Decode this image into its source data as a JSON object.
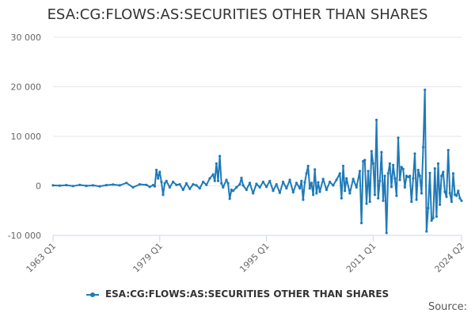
{
  "page": {
    "credits": "Source:"
  },
  "colors": {
    "series": "#1f7ab8",
    "grid": "#e6e6e6",
    "axis_text": "#666666"
  },
  "chart_data": {
    "type": "line",
    "title": "ESA:CG:FLOWS:AS:SECURITIES OTHER THAN SHARES",
    "xlabel": "",
    "ylabel": "",
    "ylim": [
      -10000,
      30000
    ],
    "y_ticks": [
      -10000,
      0,
      10000,
      20000,
      30000
    ],
    "y_tick_labels": [
      "-10 000",
      "0",
      "10 000",
      "20 000",
      "30 000"
    ],
    "x_tick_labels": [
      "1963 Q1",
      "1979 Q1",
      "1995 Q1",
      "2011 Q1",
      "2024 Q2"
    ],
    "x_tick_positions": [
      1963.0,
      1979.0,
      1995.0,
      2011.0,
      2024.25
    ],
    "xlim": [
      1963.0,
      2024.25
    ],
    "grid": true,
    "legend": "bottom-center",
    "series": [
      {
        "name": "ESA:CG:FLOWS:AS:SECURITIES OTHER THAN SHARES",
        "points": [
          [
            1963.0,
            100
          ],
          [
            1964.0,
            50
          ],
          [
            1965.0,
            150
          ],
          [
            1966.0,
            -50
          ],
          [
            1967.0,
            200
          ],
          [
            1968.0,
            0
          ],
          [
            1969.0,
            100
          ],
          [
            1970.0,
            -100
          ],
          [
            1971.0,
            150
          ],
          [
            1972.0,
            250
          ],
          [
            1973.0,
            100
          ],
          [
            1974.0,
            600
          ],
          [
            1975.0,
            -300
          ],
          [
            1976.0,
            300
          ],
          [
            1977.0,
            200
          ],
          [
            1977.5,
            -200
          ],
          [
            1978.0,
            150
          ],
          [
            1978.25,
            -100
          ],
          [
            1978.5,
            3200
          ],
          [
            1978.75,
            1500
          ],
          [
            1979.0,
            2800
          ],
          [
            1979.25,
            800
          ],
          [
            1979.5,
            -1800
          ],
          [
            1979.75,
            500
          ],
          [
            1980.0,
            1000
          ],
          [
            1980.5,
            -300
          ],
          [
            1981.0,
            800
          ],
          [
            1981.5,
            200
          ],
          [
            1982.0,
            300
          ],
          [
            1982.5,
            -800
          ],
          [
            1983.0,
            500
          ],
          [
            1983.5,
            -600
          ],
          [
            1984.0,
            300
          ],
          [
            1984.5,
            100
          ],
          [
            1985.0,
            -500
          ],
          [
            1985.5,
            800
          ],
          [
            1986.0,
            200
          ],
          [
            1986.5,
            1500
          ],
          [
            1987.0,
            2300
          ],
          [
            1987.25,
            1000
          ],
          [
            1987.5,
            4500
          ],
          [
            1987.75,
            1000
          ],
          [
            1988.0,
            6000
          ],
          [
            1988.25,
            500
          ],
          [
            1988.5,
            -300
          ],
          [
            1989.0,
            1200
          ],
          [
            1989.25,
            500
          ],
          [
            1989.5,
            -2600
          ],
          [
            1989.75,
            -800
          ],
          [
            1990.0,
            -1000
          ],
          [
            1990.5,
            -300
          ],
          [
            1991.0,
            300
          ],
          [
            1991.25,
            1600
          ],
          [
            1991.5,
            100
          ],
          [
            1992.0,
            -800
          ],
          [
            1992.5,
            600
          ],
          [
            1993.0,
            -1500
          ],
          [
            1993.5,
            400
          ],
          [
            1994.0,
            -300
          ],
          [
            1994.5,
            800
          ],
          [
            1995.0,
            -200
          ],
          [
            1995.5,
            1000
          ],
          [
            1996.0,
            -1000
          ],
          [
            1996.5,
            300
          ],
          [
            1997.0,
            -1400
          ],
          [
            1997.5,
            800
          ],
          [
            1998.0,
            -500
          ],
          [
            1998.5,
            1200
          ],
          [
            1999.0,
            -1300
          ],
          [
            1999.5,
            600
          ],
          [
            2000.0,
            -500
          ],
          [
            2000.25,
            1000
          ],
          [
            2000.5,
            -2800
          ],
          [
            2000.75,
            700
          ],
          [
            2001.0,
            2500
          ],
          [
            2001.25,
            4000
          ],
          [
            2001.5,
            -500
          ],
          [
            2001.75,
            600
          ],
          [
            2002.0,
            -1800
          ],
          [
            2002.25,
            3300
          ],
          [
            2002.5,
            -1500
          ],
          [
            2002.75,
            700
          ],
          [
            2003.0,
            -1200
          ],
          [
            2003.5,
            1400
          ],
          [
            2004.0,
            -800
          ],
          [
            2004.5,
            800
          ],
          [
            2005.0,
            100
          ],
          [
            2005.5,
            1200
          ],
          [
            2006.0,
            2500
          ],
          [
            2006.25,
            -2500
          ],
          [
            2006.5,
            4000
          ],
          [
            2006.75,
            -1000
          ],
          [
            2007.0,
            1500
          ],
          [
            2007.5,
            -1500
          ],
          [
            2008.0,
            1400
          ],
          [
            2008.5,
            -300
          ],
          [
            2009.0,
            3000
          ],
          [
            2009.25,
            -7500
          ],
          [
            2009.5,
            5000
          ],
          [
            2009.75,
            5200
          ],
          [
            2010.0,
            -3600
          ],
          [
            2010.25,
            3000
          ],
          [
            2010.5,
            -3200
          ],
          [
            2010.75,
            7000
          ],
          [
            2011.0,
            4500
          ],
          [
            2011.25,
            -1800
          ],
          [
            2011.5,
            13300
          ],
          [
            2011.75,
            -2500
          ],
          [
            2012.0,
            1000
          ],
          [
            2012.25,
            6800
          ],
          [
            2012.5,
            -3000
          ],
          [
            2012.75,
            2000
          ],
          [
            2013.0,
            -9500
          ],
          [
            2013.25,
            2500
          ],
          [
            2013.5,
            4500
          ],
          [
            2013.75,
            -200
          ],
          [
            2014.0,
            4200
          ],
          [
            2014.25,
            1500
          ],
          [
            2014.5,
            -2000
          ],
          [
            2014.75,
            9700
          ],
          [
            2015.0,
            1200
          ],
          [
            2015.25,
            3800
          ],
          [
            2015.5,
            3400
          ],
          [
            2015.75,
            -300
          ],
          [
            2016.0,
            2000
          ],
          [
            2016.25,
            1800
          ],
          [
            2016.5,
            2000
          ],
          [
            2016.75,
            -3200
          ],
          [
            2017.0,
            1500
          ],
          [
            2017.25,
            6500
          ],
          [
            2017.5,
            -2800
          ],
          [
            2017.75,
            3200
          ],
          [
            2018.0,
            2000
          ],
          [
            2018.25,
            -1500
          ],
          [
            2018.5,
            7800
          ],
          [
            2018.75,
            19400
          ],
          [
            2019.0,
            -9200
          ],
          [
            2019.25,
            -4500
          ],
          [
            2019.5,
            2600
          ],
          [
            2019.75,
            -7000
          ],
          [
            2020.0,
            -6500
          ],
          [
            2020.25,
            3500
          ],
          [
            2020.5,
            -6200
          ],
          [
            2020.75,
            4500
          ],
          [
            2021.0,
            -3800
          ],
          [
            2021.25,
            2000
          ],
          [
            2021.5,
            2800
          ],
          [
            2021.75,
            -1200
          ],
          [
            2022.0,
            -2200
          ],
          [
            2022.25,
            7200
          ],
          [
            2022.5,
            -1500
          ],
          [
            2022.75,
            -3200
          ],
          [
            2023.0,
            2500
          ],
          [
            2023.25,
            -1800
          ],
          [
            2023.5,
            -2000
          ],
          [
            2023.75,
            -1000
          ],
          [
            2024.0,
            -2500
          ],
          [
            2024.25,
            -3000
          ]
        ]
      }
    ]
  }
}
